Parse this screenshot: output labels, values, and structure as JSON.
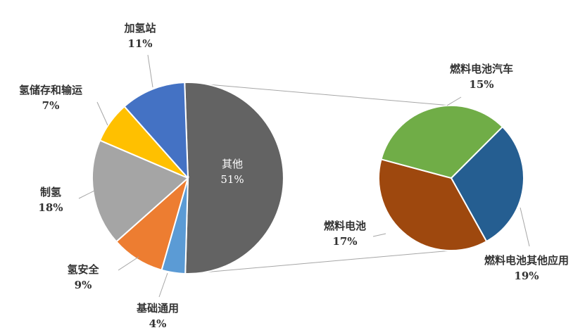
{
  "chart_data": {
    "type": "pie",
    "title": "",
    "main_pie": {
      "slices": [
        {
          "label": "其他",
          "percent": "51%",
          "value": 51,
          "color": "#636363"
        },
        {
          "label": "基础通用",
          "percent": "4%",
          "value": 4,
          "color": "#5b9bd5"
        },
        {
          "label": "氢安全",
          "percent": "9%",
          "value": 9,
          "color": "#ed7d31"
        },
        {
          "label": "制氢",
          "percent": "18%",
          "value": 18,
          "color": "#a5a5a5"
        },
        {
          "label": "氢储存和输运",
          "percent": "7%",
          "value": 7,
          "color": "#ffc000"
        },
        {
          "label": "加氢站",
          "percent": "11%",
          "value": 11,
          "color": "#4472c4"
        }
      ]
    },
    "breakdown_pie": {
      "of_slice": "其他",
      "slices": [
        {
          "label": "燃料电池汽车",
          "percent": "15%",
          "value": 15,
          "color": "#255e91"
        },
        {
          "label": "燃料电池其他应用",
          "percent": "19%",
          "value": 19,
          "color": "#9e480e"
        },
        {
          "label": "燃料电池",
          "percent": "17%",
          "value": 17,
          "color": "#70ad47"
        }
      ]
    }
  }
}
